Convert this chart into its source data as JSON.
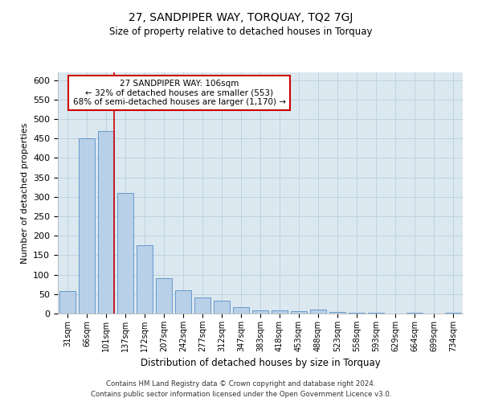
{
  "title": "27, SANDPIPER WAY, TORQUAY, TQ2 7GJ",
  "subtitle": "Size of property relative to detached houses in Torquay",
  "xlabel": "Distribution of detached houses by size in Torquay",
  "ylabel": "Number of detached properties",
  "categories": [
    "31sqm",
    "66sqm",
    "101sqm",
    "137sqm",
    "172sqm",
    "207sqm",
    "242sqm",
    "277sqm",
    "312sqm",
    "347sqm",
    "383sqm",
    "418sqm",
    "453sqm",
    "488sqm",
    "523sqm",
    "558sqm",
    "593sqm",
    "629sqm",
    "664sqm",
    "699sqm",
    "734sqm"
  ],
  "values": [
    57,
    450,
    470,
    310,
    175,
    90,
    60,
    42,
    33,
    16,
    8,
    8,
    6,
    10,
    5,
    3,
    3,
    1,
    3,
    1,
    2
  ],
  "bar_color": "#b8d0e8",
  "bar_edge_color": "#6699cc",
  "background_color": "#ffffff",
  "plot_bg_color": "#dce8f0",
  "grid_color": "#b8cfe0",
  "vline_color": "#cc0000",
  "annotation_title": "27 SANDPIPER WAY: 106sqm",
  "annotation_line1": "← 32% of detached houses are smaller (553)",
  "annotation_line2": "68% of semi-detached houses are larger (1,170) →",
  "annotation_box_color": "#ffffff",
  "annotation_box_edge": "#cc0000",
  "ylim": [
    0,
    620
  ],
  "yticks": [
    0,
    50,
    100,
    150,
    200,
    250,
    300,
    350,
    400,
    450,
    500,
    550,
    600
  ],
  "footer1": "Contains HM Land Registry data © Crown copyright and database right 2024.",
  "footer2": "Contains public sector information licensed under the Open Government Licence v3.0."
}
